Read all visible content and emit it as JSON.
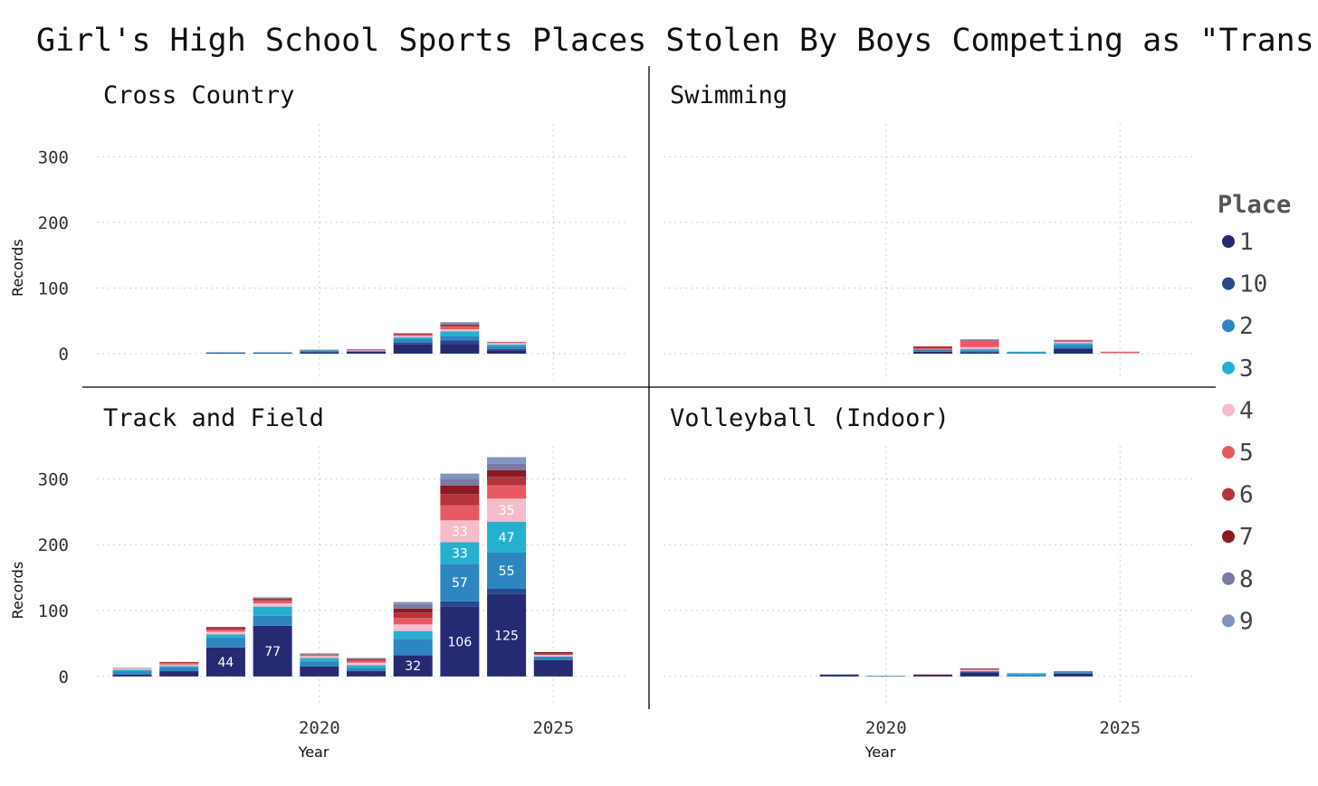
{
  "chart_data": {
    "type": "bar",
    "stacked": true,
    "title": "Girl's High School Sports Places Stolen By Boys Competing as \"Trans\"",
    "xlabel": "Year",
    "ylabel": "Records",
    "ylim": [
      -40,
      350
    ],
    "xlim": [
      2015.4,
      2026.6
    ],
    "yticks": [
      0,
      100,
      200,
      300
    ],
    "xticks": [
      2020,
      2025
    ],
    "grid": true,
    "legend": {
      "title": "Place",
      "position": "right",
      "entries": [
        "1",
        "10",
        "2",
        "3",
        "4",
        "5",
        "6",
        "7",
        "8",
        "9"
      ]
    },
    "colors": {
      "1": "#262a72",
      "10": "#27488c",
      "2": "#2e86c1",
      "3": "#26b0d0",
      "4": "#f7bccb",
      "5": "#e85a62",
      "6": "#b3343c",
      "7": "#8b1a22",
      "8": "#7a7aa3",
      "9": "#8195be"
    },
    "stack_order": [
      "1",
      "10",
      "2",
      "3",
      "4",
      "5",
      "6",
      "7",
      "8",
      "9"
    ],
    "facets": [
      {
        "name": "Cross Country",
        "bars": [
          {
            "year": 2018,
            "values": {
              "1": 1,
              "2": 1
            }
          },
          {
            "year": 2019,
            "values": {
              "1": 1,
              "2": 1
            }
          },
          {
            "year": 2020,
            "values": {
              "1": 2,
              "2": 2,
              "3": 1,
              "8": 1
            }
          },
          {
            "year": 2021,
            "values": {
              "1": 3,
              "2": 1,
              "4": 1,
              "5": 1,
              "8": 1
            }
          },
          {
            "year": 2022,
            "values": {
              "1": 14,
              "10": 3,
              "2": 5,
              "3": 3,
              "4": 2,
              "5": 2,
              "6": 2
            }
          },
          {
            "year": 2023,
            "values": {
              "1": 15,
              "10": 5,
              "2": 7,
              "3": 7,
              "4": 3,
              "5": 4,
              "6": 2,
              "7": 1,
              "8": 2,
              "9": 2
            }
          },
          {
            "year": 2024,
            "values": {
              "1": 5,
              "10": 2,
              "2": 5,
              "3": 2,
              "4": 2,
              "5": 2
            }
          }
        ]
      },
      {
        "name": "Swimming",
        "bars": [
          {
            "year": 2021,
            "values": {
              "1": 3,
              "2": 3,
              "5": 2,
              "6": 2,
              "7": 1
            }
          },
          {
            "year": 2022,
            "values": {
              "1": 2,
              "2": 3,
              "3": 2,
              "4": 3,
              "5": 10,
              "8": 1,
              "9": 1
            }
          },
          {
            "year": 2023,
            "values": {
              "2": 2,
              "3": 1
            }
          },
          {
            "year": 2024,
            "values": {
              "1": 8,
              "2": 5,
              "3": 3,
              "4": 2,
              "5": 2,
              "8": 1
            }
          },
          {
            "year": 2025,
            "values": {
              "4": 1,
              "5": 2
            }
          }
        ]
      },
      {
        "name": "Track and Field",
        "bars": [
          {
            "year": 2016,
            "values": {
              "1": 3,
              "2": 5,
              "3": 2,
              "4": 2,
              "9": 1
            }
          },
          {
            "year": 2017,
            "values": {
              "1": 8,
              "2": 6,
              "3": 2,
              "4": 2,
              "5": 2,
              "6": 2
            }
          },
          {
            "year": 2018,
            "values": {
              "1": 44,
              "2": 15,
              "3": 5,
              "4": 4,
              "5": 3,
              "6": 2,
              "7": 2
            }
          },
          {
            "year": 2019,
            "values": {
              "1": 77,
              "2": 15,
              "3": 14,
              "4": 5,
              "5": 4,
              "6": 3,
              "8": 2
            }
          },
          {
            "year": 2020,
            "values": {
              "1": 15,
              "2": 8,
              "3": 5,
              "4": 3,
              "5": 2,
              "8": 2
            }
          },
          {
            "year": 2021,
            "values": {
              "1": 8,
              "2": 5,
              "3": 4,
              "4": 4,
              "5": 3,
              "6": 2,
              "8": 2
            }
          },
          {
            "year": 2022,
            "values": {
              "1": 32,
              "2": 25,
              "3": 12,
              "4": 10,
              "5": 10,
              "6": 8,
              "7": 6,
              "8": 6,
              "9": 4
            }
          },
          {
            "year": 2023,
            "values": {
              "1": 106,
              "10": 8,
              "2": 57,
              "3": 33,
              "4": 33,
              "5": 23,
              "6": 17,
              "7": 13,
              "8": 10,
              "9": 8
            }
          },
          {
            "year": 2024,
            "values": {
              "1": 125,
              "10": 8,
              "2": 55,
              "3": 47,
              "4": 35,
              "5": 20,
              "6": 13,
              "7": 10,
              "8": 10,
              "9": 10
            }
          },
          {
            "year": 2025,
            "values": {
              "1": 25,
              "2": 5,
              "4": 3,
              "6": 2,
              "7": 2
            }
          }
        ],
        "data_labels": [
          {
            "year": 2018,
            "place": "1",
            "value": 44
          },
          {
            "year": 2019,
            "place": "1",
            "value": 77
          },
          {
            "year": 2022,
            "place": "1",
            "value": 32
          },
          {
            "year": 2023,
            "place": "1",
            "value": 106
          },
          {
            "year": 2023,
            "place": "2",
            "value": 57
          },
          {
            "year": 2023,
            "place": "3",
            "value": 33
          },
          {
            "year": 2023,
            "place": "4",
            "value": 33
          },
          {
            "year": 2024,
            "place": "1",
            "value": 125
          },
          {
            "year": 2024,
            "place": "2",
            "value": 55
          },
          {
            "year": 2024,
            "place": "3",
            "value": 47
          },
          {
            "year": 2024,
            "place": "4",
            "value": 35
          }
        ]
      },
      {
        "name": "Volleyball (Indoor)",
        "bars": [
          {
            "year": 2019,
            "values": {
              "1": 2,
              "10": 1
            }
          },
          {
            "year": 2020,
            "values": {
              "2": 1
            }
          },
          {
            "year": 2021,
            "values": {
              "1": 2,
              "7": 1
            }
          },
          {
            "year": 2022,
            "values": {
              "1": 6,
              "2": 2,
              "4": 2,
              "5": 1,
              "7": 1
            }
          },
          {
            "year": 2023,
            "values": {
              "2": 3,
              "3": 2
            }
          },
          {
            "year": 2024,
            "values": {
              "1": 4,
              "2": 2,
              "8": 2
            }
          }
        ]
      }
    ]
  }
}
